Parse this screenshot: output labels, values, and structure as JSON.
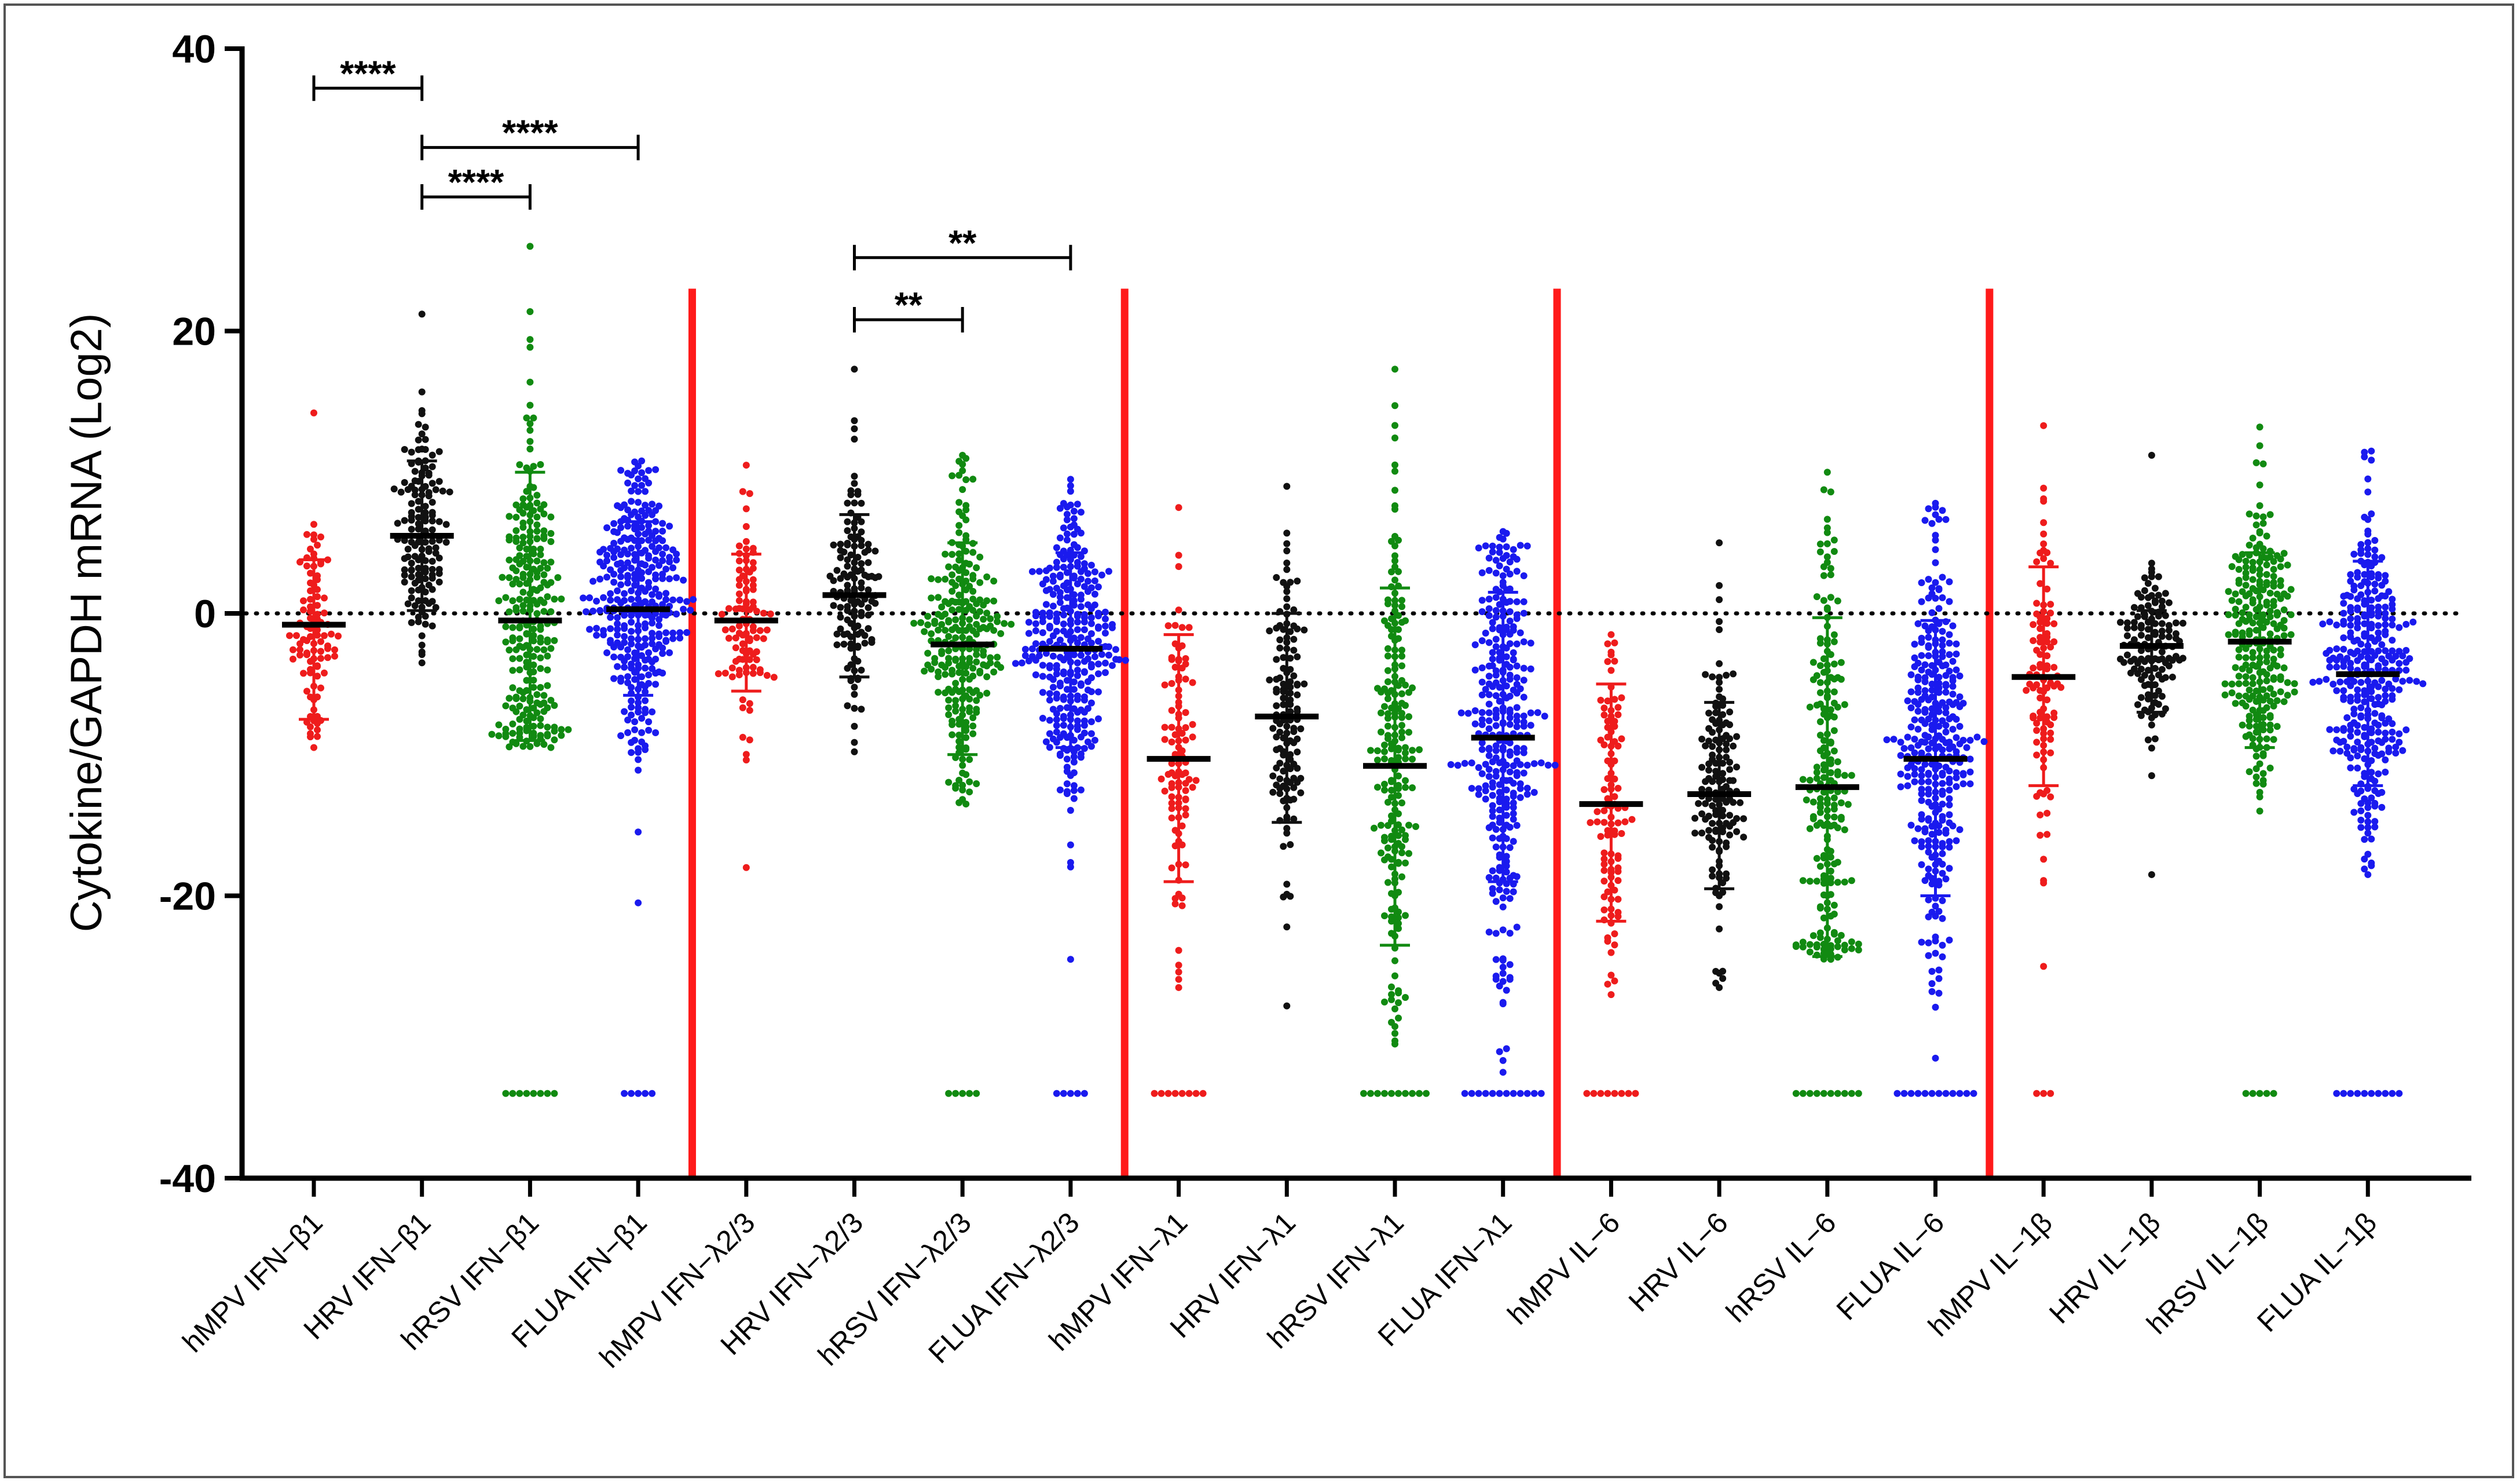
{
  "chart_data": {
    "type": "scatter",
    "subtype": "dot-plot-with-median-and-error-bars",
    "title": "",
    "xlabel": "",
    "ylabel": "Cytokine/GAPDH mRNA (Log2)",
    "ylim": [
      -40,
      40
    ],
    "yticks": [
      "40",
      "20",
      "0",
      "-20",
      "-40"
    ],
    "yticks_values": [
      40,
      20,
      0,
      -20,
      -40
    ],
    "reference_line_y": 0,
    "group_separators_after": [
      4,
      8,
      12,
      16
    ],
    "colors": {
      "hMPV": "#ee1c1c",
      "HRV": "#111111",
      "hRSV": "#118a11",
      "FLUA": "#1a1aee",
      "separator": "#ff1a1a"
    },
    "categories": [
      {
        "label": "hMPV IFN−β1",
        "virus": "hMPV",
        "median": -0.8,
        "lower": -7.5,
        "upper": 3.8,
        "min": -9.5,
        "max": 14.2,
        "n": 95,
        "nd": 0
      },
      {
        "label": "HRV IFN−β1",
        "virus": "HRV",
        "median": 5.5,
        "lower": 0.2,
        "upper": 10.8,
        "min": -3.5,
        "max": 21.2,
        "n": 140,
        "nd": 0
      },
      {
        "label": "hRSV IFN−β1",
        "virus": "hRSV",
        "median": -0.5,
        "lower": -9.0,
        "upper": 10.0,
        "min": -9.5,
        "max": 26.0,
        "n": 250,
        "nd": 8
      },
      {
        "label": "FLUA IFN−β1",
        "virus": "FLUA",
        "median": 0.3,
        "lower": -5.8,
        "upper": 6.5,
        "min": -20.5,
        "max": 10.8,
        "n": 330,
        "nd": 5
      },
      {
        "label": "hMPV IFN−λ2/3",
        "virus": "hMPV",
        "median": -0.5,
        "lower": -5.5,
        "upper": 4.2,
        "min": -18.0,
        "max": 10.5,
        "n": 95,
        "nd": 0
      },
      {
        "label": "HRV IFN−λ2/3",
        "virus": "HRV",
        "median": 1.3,
        "lower": -4.5,
        "upper": 7.0,
        "min": -9.8,
        "max": 17.3,
        "n": 130,
        "nd": 0
      },
      {
        "label": "hRSV IFN−λ2/3",
        "virus": "hRSV",
        "median": -2.2,
        "lower": -10.0,
        "upper": 5.0,
        "min": -13.5,
        "max": 11.2,
        "n": 250,
        "nd": 5
      },
      {
        "label": "FLUA IFN−λ2/3",
        "virus": "FLUA",
        "median": -2.5,
        "lower": -9.5,
        "upper": 4.3,
        "min": -24.5,
        "max": 9.5,
        "n": 320,
        "nd": 5
      },
      {
        "label": "hMPV IFN−λ1",
        "virus": "hMPV",
        "median": -10.3,
        "lower": -19.0,
        "upper": -1.5,
        "min": -26.5,
        "max": 7.5,
        "n": 100,
        "nd": 8
      },
      {
        "label": "HRV IFN−λ1",
        "virus": "HRV",
        "median": -7.3,
        "lower": -14.8,
        "upper": 0.0,
        "min": -27.8,
        "max": 9.0,
        "n": 130,
        "nd": 0
      },
      {
        "label": "hRSV IFN−λ1",
        "virus": "hRSV",
        "median": -10.8,
        "lower": -23.5,
        "upper": 1.8,
        "min": -30.5,
        "max": 17.3,
        "n": 200,
        "nd": 10
      },
      {
        "label": "FLUA IFN−λ1",
        "virus": "FLUA",
        "median": -8.8,
        "lower": -19.0,
        "upper": 1.5,
        "min": -32.5,
        "max": 5.8,
        "n": 320,
        "nd": 12
      },
      {
        "label": "hMPV IL−6",
        "virus": "hMPV",
        "median": -13.5,
        "lower": -21.8,
        "upper": -5.0,
        "min": -27.0,
        "max": -1.5,
        "n": 100,
        "nd": 8
      },
      {
        "label": "HRV IL−6",
        "virus": "HRV",
        "median": -12.8,
        "lower": -19.5,
        "upper": -6.3,
        "min": -26.5,
        "max": 5.0,
        "n": 140,
        "nd": 0
      },
      {
        "label": "hRSV IL−6",
        "virus": "hRSV",
        "median": -12.3,
        "lower": -24.3,
        "upper": -0.3,
        "min": -24.5,
        "max": 10.0,
        "n": 200,
        "nd": 10
      },
      {
        "label": "FLUA IL−6",
        "virus": "FLUA",
        "median": -10.3,
        "lower": -20.0,
        "upper": -0.5,
        "min": -31.5,
        "max": 7.8,
        "n": 320,
        "nd": 12
      },
      {
        "label": "hMPV IL−1β",
        "virus": "hMPV",
        "median": -4.5,
        "lower": -12.2,
        "upper": 3.3,
        "min": -25.0,
        "max": 13.3,
        "n": 100,
        "nd": 3
      },
      {
        "label": "HRV IL−1β",
        "virus": "HRV",
        "median": -2.3,
        "lower": -7.0,
        "upper": 0.2,
        "min": -18.5,
        "max": 11.2,
        "n": 130,
        "nd": 0
      },
      {
        "label": "hRSV IL−1β",
        "virus": "hRSV",
        "median": -2.0,
        "lower": -9.5,
        "upper": 4.3,
        "min": -14.0,
        "max": 13.2,
        "n": 250,
        "nd": 5
      },
      {
        "label": "FLUA IL−1β",
        "virus": "FLUA",
        "median": -4.3,
        "lower": -12.2,
        "upper": 3.7,
        "min": -18.5,
        "max": 11.5,
        "n": 330,
        "nd": 10
      }
    ],
    "not_detected_value": -34,
    "significance": [
      {
        "from": 0,
        "to": 1,
        "y": 37.2,
        "label": "****"
      },
      {
        "from": 1,
        "to": 3,
        "y": 33.0,
        "label": "****"
      },
      {
        "from": 1,
        "to": 2,
        "y": 29.5,
        "label": "****"
      },
      {
        "from": 5,
        "to": 7,
        "y": 25.2,
        "label": "**"
      },
      {
        "from": 5,
        "to": 6,
        "y": 20.8,
        "label": "**"
      }
    ]
  }
}
